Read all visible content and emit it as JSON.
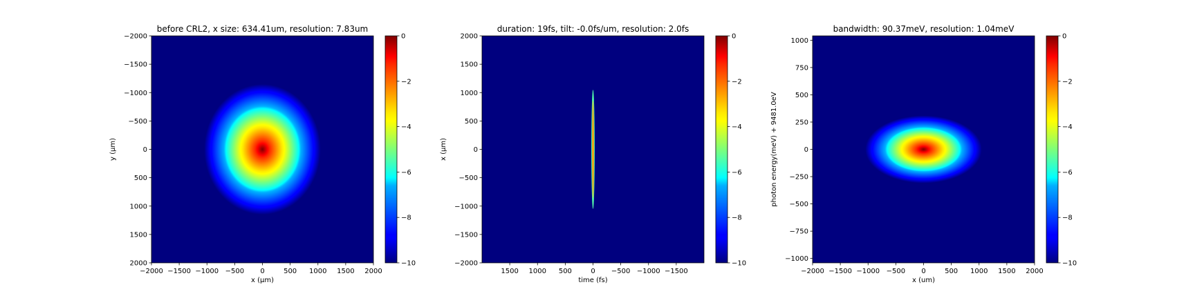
{
  "colorbar": {
    "ticks": [
      0,
      -2,
      -4,
      -6,
      -8,
      -10
    ],
    "range": [
      -10,
      0
    ],
    "colormap": "jet"
  },
  "chart_data": [
    {
      "type": "heatmap",
      "title": "before CRL2, x size: 634.41um, resolution: 7.83um",
      "xlabel": "x (μm)",
      "ylabel": "y (μm)",
      "xlim": [
        -2000,
        2000
      ],
      "ylim": [
        2000,
        -2000
      ],
      "xticks": [
        -2000,
        -1500,
        -1000,
        -500,
        0,
        500,
        1000,
        1500,
        2000
      ],
      "yticks": [
        -2000,
        -1500,
        -1000,
        -500,
        0,
        500,
        1000,
        1500,
        2000
      ],
      "xtick_labels": [
        "−2000",
        "−1500",
        "−1000",
        "−500",
        "0",
        "500",
        "1000",
        "1500",
        "2000"
      ],
      "ytick_labels": [
        "−2000",
        "−1500",
        "−1000",
        "−500",
        "0",
        "500",
        "1000",
        "1500",
        "2000"
      ],
      "spot": {
        "center": [
          0,
          0
        ],
        "width_at_min": [
          2100,
          2300
        ]
      },
      "colorbar_range": [
        -10,
        0
      ]
    },
    {
      "type": "heatmap",
      "title": "duration: 19fs, tilt: -0.0fs/um, resolution: 2.0fs",
      "xlabel": "time (fs)",
      "ylabel": "x (μm)",
      "xlim": [
        2000,
        -2000
      ],
      "ylim": [
        -2000,
        2000
      ],
      "xticks": [
        1500,
        1000,
        500,
        0,
        -500,
        -1000,
        -1500
      ],
      "yticks": [
        -2000,
        -1500,
        -1000,
        -500,
        0,
        500,
        1000,
        1500,
        2000
      ],
      "xtick_labels": [
        "1500",
        "1000",
        "500",
        "0",
        "−500",
        "−1000",
        "−1500"
      ],
      "ytick_labels": [
        "−2000",
        "−1500",
        "−1000",
        "−500",
        "0",
        "500",
        "1000",
        "1500",
        "2000"
      ],
      "spot": {
        "center": [
          0,
          0
        ],
        "width_at_min": [
          30,
          2100
        ]
      },
      "colorbar_range": [
        -10,
        0
      ]
    },
    {
      "type": "heatmap",
      "title": "bandwidth: 90.37meV, resolution: 1.04meV",
      "xlabel": "x (um)",
      "ylabel": "photon energy(meV) + 9481.0eV",
      "xlim": [
        -2000,
        2000
      ],
      "ylim": [
        -1040,
        1040
      ],
      "xticks": [
        -2000,
        -1500,
        -1000,
        -500,
        0,
        500,
        1000,
        1500,
        2000
      ],
      "yticks": [
        1000,
        750,
        500,
        250,
        0,
        -250,
        -500,
        -750,
        -1000
      ],
      "xtick_labels": [
        "−2000",
        "−1500",
        "−1000",
        "−500",
        "0",
        "500",
        "1000",
        "1500",
        "2000"
      ],
      "ytick_labels": [
        "1000",
        "750",
        "500",
        "250",
        "0",
        "−250",
        "−500",
        "−750",
        "−1000"
      ],
      "spot": {
        "center": [
          0,
          0
        ],
        "width_at_min": [
          2100,
          620
        ]
      },
      "colorbar_range": [
        -10,
        0
      ]
    }
  ]
}
